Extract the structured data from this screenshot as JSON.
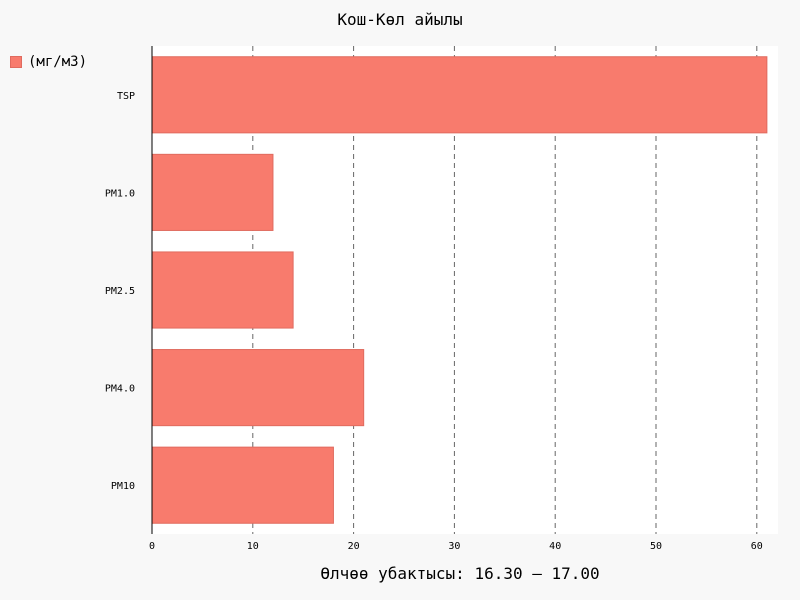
{
  "chart_data": {
    "type": "bar",
    "orientation": "horizontal",
    "title": "Кош-Көл айылы",
    "xlabel": "Өлчөө убактысы: 16.30 — 17.00",
    "ylabel": "",
    "categories": [
      "TSP",
      "PM1.0",
      "PM2.5",
      "PM4.0",
      "PM10"
    ],
    "series": [
      {
        "name": "(мг/м3)",
        "values": [
          61,
          12,
          14,
          21,
          18
        ]
      }
    ],
    "xlim": [
      0,
      62
    ],
    "xticks": [
      0,
      10,
      20,
      30,
      40,
      50,
      60
    ],
    "grid": "vertical-dashed",
    "legend_position": "top-left",
    "bar_color": "#f87b6d",
    "bar_edge_color": "#e06b5f"
  }
}
